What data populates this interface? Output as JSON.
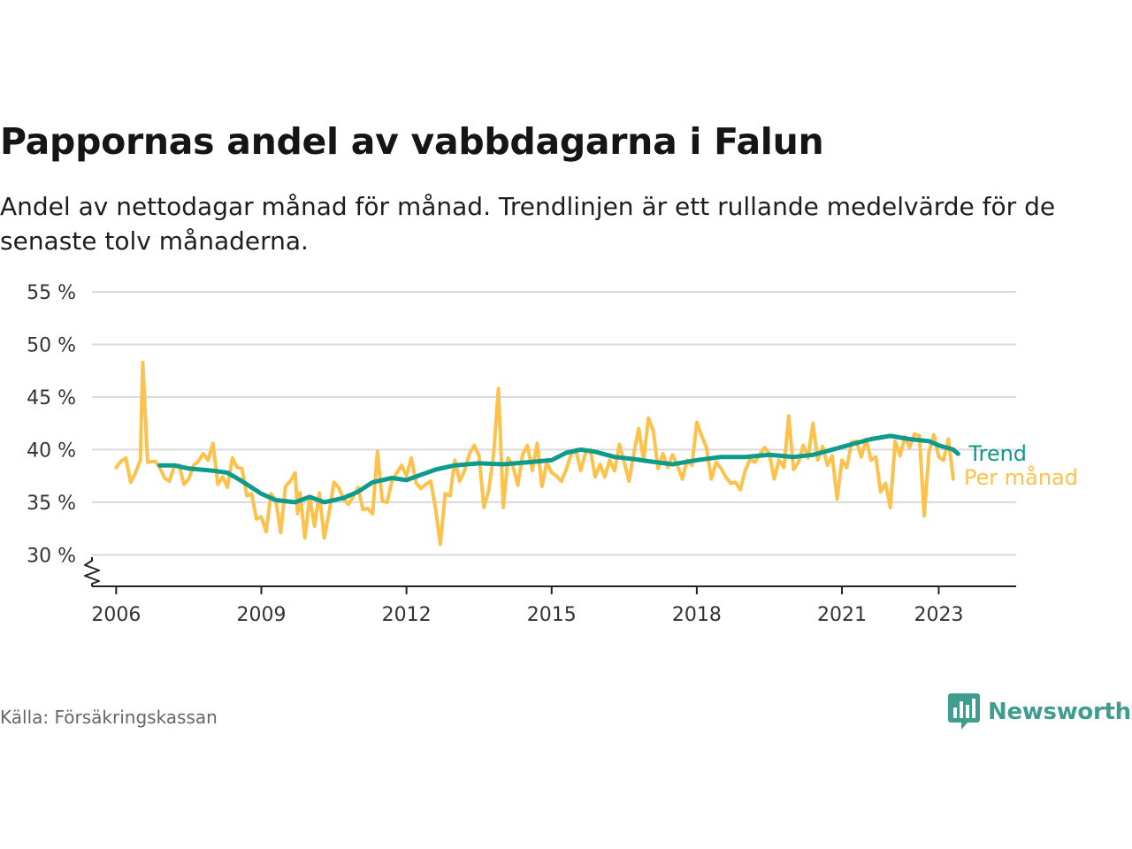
{
  "header": {
    "title": "Pappornas andel av vabbdagarna i Falun",
    "subtitle": "Andel av nettodagar månad för månad. Trendlinjen är ett rullande medelvärde för de senaste tolv månaderna."
  },
  "footer": {
    "source": "Källa: Försäkringskassan",
    "brand": "Newsworthy"
  },
  "colors": {
    "monthly": "#fcc24b",
    "trend": "#0e9b8c",
    "grid": "#d9d9d9",
    "axis": "#222222",
    "brand": "#3f9c8f"
  },
  "chart_data": {
    "type": "line",
    "ylim": [
      27,
      55
    ],
    "y_ticks": [
      30,
      35,
      40,
      45,
      50,
      55
    ],
    "y_tick_labels": [
      "30 %",
      "35 %",
      "40 %",
      "45 %",
      "50 %",
      "55 %"
    ],
    "y_axis_break": true,
    "x_ticks": [
      2006,
      2009,
      2012,
      2015,
      2018,
      2021,
      2023
    ],
    "x_tick_labels": [
      "2006",
      "2009",
      "2012",
      "2015",
      "2018",
      "2021",
      "2023"
    ],
    "xlim": [
      2005.5,
      2024.6
    ],
    "grid": true,
    "legend": "inline labels at right end of lines",
    "series": [
      {
        "name": "Trend",
        "color": "#0e9b8c",
        "points": [
          [
            2006.9,
            38.5
          ],
          [
            2007.2,
            38.5
          ],
          [
            2007.5,
            38.2
          ],
          [
            2008.0,
            38.0
          ],
          [
            2008.3,
            37.8
          ],
          [
            2008.6,
            37.0
          ],
          [
            2009.0,
            35.8
          ],
          [
            2009.3,
            35.2
          ],
          [
            2009.7,
            35.0
          ],
          [
            2010.0,
            35.5
          ],
          [
            2010.3,
            35.0
          ],
          [
            2010.7,
            35.4
          ],
          [
            2011.0,
            36.0
          ],
          [
            2011.3,
            36.9
          ],
          [
            2011.7,
            37.3
          ],
          [
            2012.0,
            37.1
          ],
          [
            2012.3,
            37.6
          ],
          [
            2012.6,
            38.1
          ],
          [
            2013.0,
            38.5
          ],
          [
            2013.5,
            38.7
          ],
          [
            2014.0,
            38.6
          ],
          [
            2014.5,
            38.8
          ],
          [
            2015.0,
            39.0
          ],
          [
            2015.3,
            39.7
          ],
          [
            2015.6,
            40.0
          ],
          [
            2015.9,
            39.8
          ],
          [
            2016.3,
            39.3
          ],
          [
            2016.7,
            39.1
          ],
          [
            2017.0,
            38.9
          ],
          [
            2017.5,
            38.6
          ],
          [
            2018.0,
            39.0
          ],
          [
            2018.5,
            39.3
          ],
          [
            2019.0,
            39.3
          ],
          [
            2019.5,
            39.5
          ],
          [
            2020.0,
            39.3
          ],
          [
            2020.4,
            39.5
          ],
          [
            2020.8,
            40.0
          ],
          [
            2021.2,
            40.5
          ],
          [
            2021.6,
            41.0
          ],
          [
            2022.0,
            41.3
          ],
          [
            2022.4,
            41.0
          ],
          [
            2022.8,
            40.8
          ],
          [
            2023.0,
            40.4
          ],
          [
            2023.3,
            40.0
          ],
          [
            2023.4,
            39.6
          ]
        ]
      },
      {
        "name": "Per månad",
        "color": "#fcc24b",
        "points": [
          [
            2006.0,
            38.3
          ],
          [
            2006.1,
            38.9
          ],
          [
            2006.2,
            39.2
          ],
          [
            2006.3,
            36.9
          ],
          [
            2006.4,
            37.8
          ],
          [
            2006.5,
            39.0
          ],
          [
            2006.55,
            48.3
          ],
          [
            2006.65,
            38.8
          ],
          [
            2006.8,
            38.9
          ],
          [
            2006.9,
            38.3
          ],
          [
            2007.0,
            37.3
          ],
          [
            2007.1,
            37.0
          ],
          [
            2007.2,
            38.4
          ],
          [
            2007.3,
            38.5
          ],
          [
            2007.4,
            36.7
          ],
          [
            2007.5,
            37.2
          ],
          [
            2007.6,
            38.5
          ],
          [
            2007.7,
            38.9
          ],
          [
            2007.8,
            39.6
          ],
          [
            2007.9,
            39.0
          ],
          [
            2008.0,
            40.6
          ],
          [
            2008.1,
            36.7
          ],
          [
            2008.2,
            37.4
          ],
          [
            2008.3,
            36.4
          ],
          [
            2008.4,
            39.2
          ],
          [
            2008.5,
            38.3
          ],
          [
            2008.6,
            38.2
          ],
          [
            2008.7,
            35.6
          ],
          [
            2008.8,
            35.8
          ],
          [
            2008.9,
            33.4
          ],
          [
            2009.0,
            33.6
          ],
          [
            2009.1,
            32.2
          ],
          [
            2009.2,
            35.8
          ],
          [
            2009.3,
            35.2
          ],
          [
            2009.4,
            32.1
          ],
          [
            2009.5,
            36.5
          ],
          [
            2009.6,
            37.0
          ],
          [
            2009.7,
            37.8
          ],
          [
            2009.75,
            33.9
          ],
          [
            2009.8,
            35.9
          ],
          [
            2009.9,
            31.6
          ],
          [
            2010.0,
            35.5
          ],
          [
            2010.1,
            32.7
          ],
          [
            2010.2,
            35.9
          ],
          [
            2010.3,
            31.6
          ],
          [
            2010.4,
            34.0
          ],
          [
            2010.5,
            36.9
          ],
          [
            2010.6,
            36.4
          ],
          [
            2010.7,
            35.3
          ],
          [
            2010.8,
            34.8
          ],
          [
            2010.9,
            35.5
          ],
          [
            2011.0,
            36.4
          ],
          [
            2011.1,
            34.3
          ],
          [
            2011.2,
            34.4
          ],
          [
            2011.3,
            33.9
          ],
          [
            2011.4,
            39.8
          ],
          [
            2011.5,
            35.1
          ],
          [
            2011.6,
            35.0
          ],
          [
            2011.7,
            37.0
          ],
          [
            2011.8,
            37.8
          ],
          [
            2011.9,
            38.5
          ],
          [
            2012.0,
            37.5
          ],
          [
            2012.1,
            39.2
          ],
          [
            2012.2,
            36.8
          ],
          [
            2012.3,
            36.3
          ],
          [
            2012.4,
            36.7
          ],
          [
            2012.5,
            37.0
          ],
          [
            2012.6,
            34.4
          ],
          [
            2012.7,
            31.0
          ],
          [
            2012.8,
            35.8
          ],
          [
            2012.9,
            35.6
          ],
          [
            2013.0,
            39.0
          ],
          [
            2013.1,
            37.0
          ],
          [
            2013.2,
            38.0
          ],
          [
            2013.3,
            39.6
          ],
          [
            2013.4,
            40.4
          ],
          [
            2013.5,
            39.4
          ],
          [
            2013.6,
            34.5
          ],
          [
            2013.7,
            36.1
          ],
          [
            2013.8,
            39.5
          ],
          [
            2013.9,
            45.8
          ],
          [
            2014.0,
            34.5
          ],
          [
            2014.1,
            39.2
          ],
          [
            2014.2,
            38.4
          ],
          [
            2014.3,
            36.6
          ],
          [
            2014.4,
            39.5
          ],
          [
            2014.5,
            40.4
          ],
          [
            2014.6,
            38.0
          ],
          [
            2014.7,
            40.6
          ],
          [
            2014.8,
            36.5
          ],
          [
            2014.9,
            38.8
          ],
          [
            2015.0,
            37.8
          ],
          [
            2015.1,
            37.5
          ],
          [
            2015.2,
            37.0
          ],
          [
            2015.3,
            38.1
          ],
          [
            2015.4,
            39.5
          ],
          [
            2015.5,
            40.0
          ],
          [
            2015.6,
            38.0
          ],
          [
            2015.7,
            39.7
          ],
          [
            2015.8,
            40.0
          ],
          [
            2015.9,
            37.4
          ],
          [
            2016.0,
            38.6
          ],
          [
            2016.1,
            37.4
          ],
          [
            2016.2,
            39.0
          ],
          [
            2016.3,
            38.0
          ],
          [
            2016.4,
            40.5
          ],
          [
            2016.5,
            38.8
          ],
          [
            2016.6,
            37.0
          ],
          [
            2016.7,
            39.7
          ],
          [
            2016.8,
            42.0
          ],
          [
            2016.9,
            39.0
          ],
          [
            2017.0,
            43.0
          ],
          [
            2017.1,
            41.8
          ],
          [
            2017.2,
            38.2
          ],
          [
            2017.3,
            39.6
          ],
          [
            2017.4,
            38.3
          ],
          [
            2017.5,
            39.5
          ],
          [
            2017.6,
            38.5
          ],
          [
            2017.7,
            37.2
          ],
          [
            2017.8,
            39.0
          ],
          [
            2017.9,
            38.5
          ],
          [
            2018.0,
            42.6
          ],
          [
            2018.1,
            41.3
          ],
          [
            2018.2,
            40.2
          ],
          [
            2018.3,
            37.2
          ],
          [
            2018.4,
            38.8
          ],
          [
            2018.5,
            38.2
          ],
          [
            2018.6,
            37.4
          ],
          [
            2018.7,
            36.8
          ],
          [
            2018.8,
            36.9
          ],
          [
            2018.9,
            36.2
          ],
          [
            2019.0,
            38.0
          ],
          [
            2019.1,
            39.1
          ],
          [
            2019.2,
            38.8
          ],
          [
            2019.3,
            39.5
          ],
          [
            2019.4,
            40.2
          ],
          [
            2019.5,
            39.6
          ],
          [
            2019.6,
            37.2
          ],
          [
            2019.7,
            39.0
          ],
          [
            2019.8,
            38.3
          ],
          [
            2019.9,
            43.2
          ],
          [
            2020.0,
            38.1
          ],
          [
            2020.1,
            38.8
          ],
          [
            2020.2,
            40.4
          ],
          [
            2020.3,
            39.2
          ],
          [
            2020.4,
            42.5
          ],
          [
            2020.5,
            39.0
          ],
          [
            2020.6,
            40.3
          ],
          [
            2020.7,
            38.5
          ],
          [
            2020.8,
            39.4
          ],
          [
            2020.9,
            35.3
          ],
          [
            2021.0,
            39.0
          ],
          [
            2021.1,
            38.3
          ],
          [
            2021.2,
            40.7
          ],
          [
            2021.3,
            40.8
          ],
          [
            2021.4,
            39.3
          ],
          [
            2021.5,
            41.0
          ],
          [
            2021.6,
            39.0
          ],
          [
            2021.7,
            39.3
          ],
          [
            2021.8,
            36.0
          ],
          [
            2021.9,
            36.8
          ],
          [
            2022.0,
            34.5
          ],
          [
            2022.1,
            40.8
          ],
          [
            2022.2,
            39.4
          ],
          [
            2022.3,
            41.2
          ],
          [
            2022.4,
            40.2
          ],
          [
            2022.5,
            41.5
          ],
          [
            2022.6,
            41.3
          ],
          [
            2022.7,
            33.7
          ],
          [
            2022.8,
            39.8
          ],
          [
            2022.9,
            41.4
          ],
          [
            2023.0,
            39.3
          ],
          [
            2023.1,
            39.0
          ],
          [
            2023.2,
            41.0
          ],
          [
            2023.3,
            37.2
          ]
        ]
      }
    ]
  }
}
